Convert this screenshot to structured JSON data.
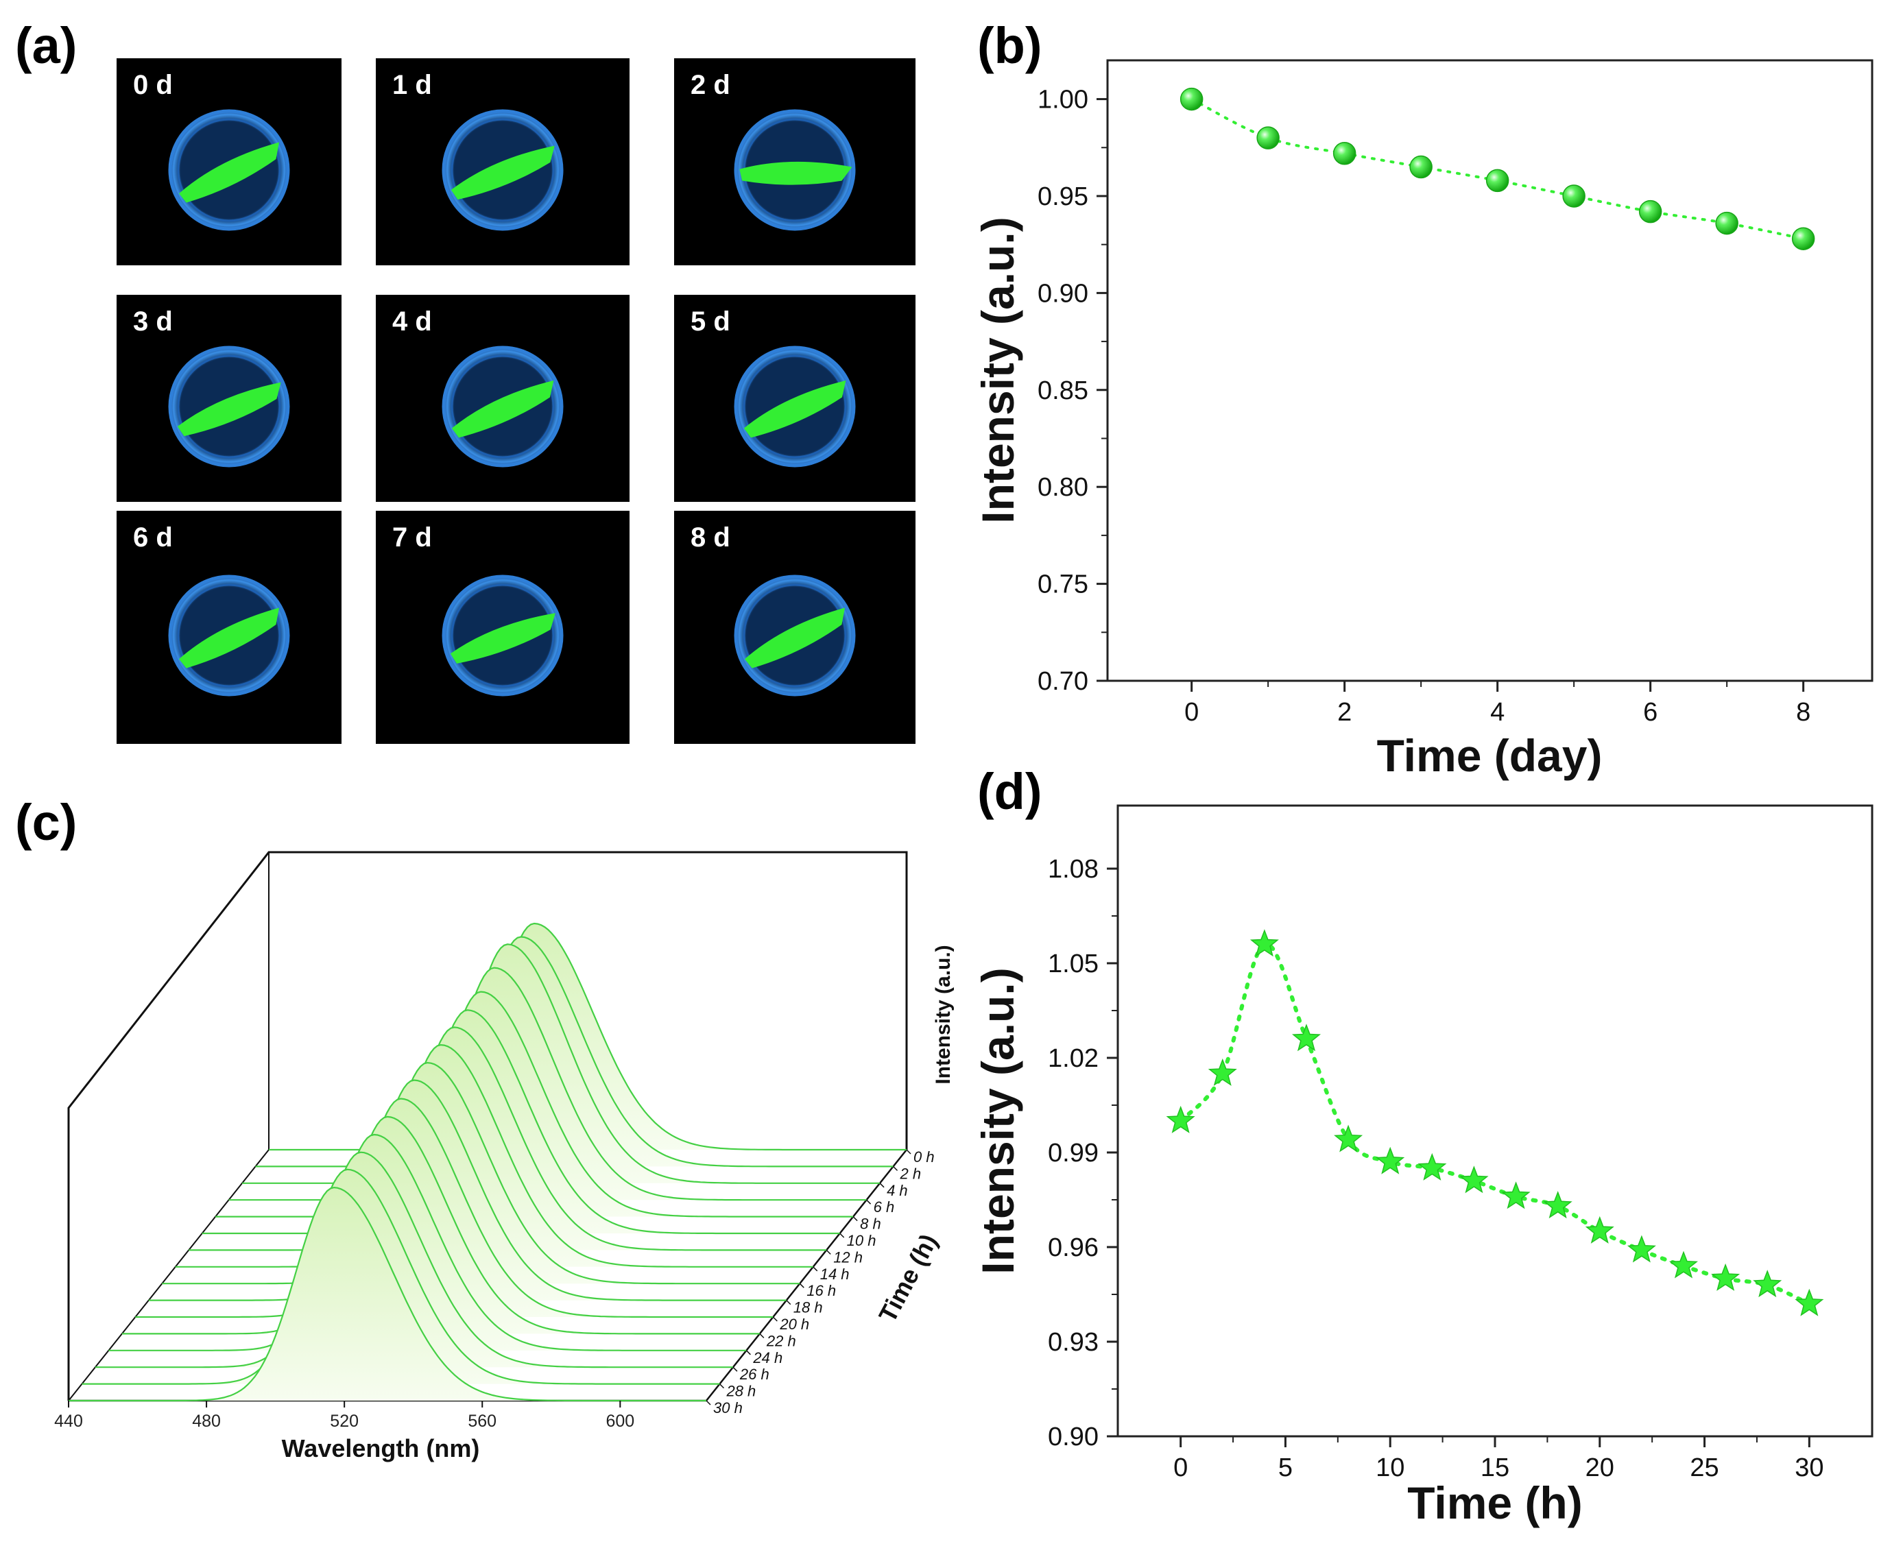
{
  "panels": {
    "a": {
      "label": "(a)"
    },
    "b": {
      "label": "(b)"
    },
    "c": {
      "label": "(c)"
    },
    "d": {
      "label": "(d)"
    }
  },
  "photos": {
    "labels": [
      "0 d",
      "1 d",
      "2 d",
      "3 d",
      "4 d",
      "5 d",
      "6 d",
      "7 d",
      "8 d"
    ]
  },
  "colors": {
    "green": "#33ee33",
    "green_dark": "#1fb81f",
    "spectrum_line": "#44d044",
    "spectrum_fill": "#dff5c8",
    "dish_blue": "#2f7fd8",
    "photo_bg": "#000000"
  },
  "chart_data": [
    {
      "id": "b",
      "type": "scatter",
      "marker": "sphere",
      "line_style": "dotted",
      "xlabel": "Time (day)",
      "ylabel": "Intensity (a.u.)",
      "xlim": [
        -1.1,
        8.9
      ],
      "ylim": [
        0.7,
        1.02
      ],
      "xticks": [
        0,
        2,
        4,
        6,
        8
      ],
      "yticks": [
        0.7,
        0.75,
        0.8,
        0.85,
        0.9,
        0.95,
        1.0
      ],
      "ytick_labels": [
        "0.70",
        "0.75",
        "0.80",
        "0.85",
        "0.90",
        "0.95",
        "1.00"
      ],
      "x": [
        0,
        1,
        2,
        3,
        4,
        5,
        6,
        7,
        8
      ],
      "y": [
        1.0,
        0.98,
        0.972,
        0.965,
        0.958,
        0.95,
        0.942,
        0.936,
        0.928
      ]
    },
    {
      "id": "c",
      "type": "line",
      "style": "3d-waterfall",
      "xlabel": "Wavelength (nm)",
      "ylabel": "Time (h)",
      "zlabel": "Intensity (a.u.)",
      "xlim": [
        440,
        625
      ],
      "xticks": [
        440,
        480,
        520,
        560,
        600
      ],
      "peak_nm": 517,
      "series_labels": [
        "0 h",
        "2 h",
        "4 h",
        "6 h",
        "8 h",
        "10 h",
        "12 h",
        "14 h",
        "16 h",
        "18 h",
        "20 h",
        "22 h",
        "24 h",
        "26 h",
        "28 h",
        "30 h"
      ],
      "relative_intensity": [
        1.0,
        1.015,
        1.056,
        1.026,
        0.994,
        0.987,
        0.985,
        0.981,
        0.976,
        0.973,
        0.965,
        0.959,
        0.954,
        0.95,
        0.948,
        0.942
      ]
    },
    {
      "id": "d",
      "type": "scatter",
      "marker": "star",
      "line_style": "dotted",
      "xlabel": "Time (h)",
      "ylabel": "Intensity (a.u.)",
      "xlim": [
        -3,
        33
      ],
      "ylim": [
        0.9,
        1.1
      ],
      "xticks": [
        0,
        5,
        10,
        15,
        20,
        25,
        30
      ],
      "yticks": [
        0.9,
        0.93,
        0.96,
        0.99,
        1.02,
        1.05,
        1.08
      ],
      "ytick_labels": [
        "0.90",
        "0.93",
        "0.96",
        "0.99",
        "1.02",
        "1.05",
        "1.08"
      ],
      "x": [
        0,
        2,
        4,
        6,
        8,
        10,
        12,
        14,
        16,
        18,
        20,
        22,
        24,
        26,
        28,
        30
      ],
      "y": [
        1.0,
        1.015,
        1.056,
        1.026,
        0.994,
        0.987,
        0.985,
        0.981,
        0.976,
        0.973,
        0.965,
        0.959,
        0.954,
        0.95,
        0.948,
        0.942
      ]
    }
  ]
}
